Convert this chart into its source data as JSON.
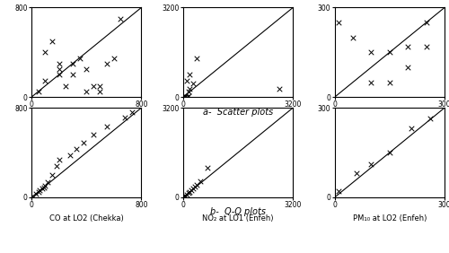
{
  "scatter_co": {
    "x": [
      50,
      100,
      150,
      200,
      200,
      250,
      300,
      350,
      400,
      450,
      500,
      550,
      600,
      650,
      100,
      200,
      300,
      400,
      500
    ],
    "y": [
      50,
      400,
      500,
      300,
      250,
      100,
      300,
      350,
      50,
      100,
      100,
      300,
      350,
      700,
      150,
      200,
      200,
      250,
      50
    ],
    "xlim": [
      0,
      800
    ],
    "ylim": [
      0,
      800
    ],
    "xlabel": "CO at LO2 (Chekka)"
  },
  "scatter_no2": {
    "x": [
      0,
      50,
      100,
      150,
      200,
      300,
      400,
      2800,
      50,
      100,
      150,
      200
    ],
    "y": [
      0,
      50,
      600,
      200,
      300,
      500,
      1400,
      300,
      0,
      0,
      50,
      800
    ],
    "xlim": [
      0,
      3200
    ],
    "ylim": [
      0,
      3200
    ],
    "xlabel": "NO₂ at LO1 (Enfeh)"
  },
  "scatter_pm10": {
    "x": [
      10,
      50,
      100,
      150,
      200,
      250,
      100,
      150,
      200,
      250
    ],
    "y": [
      250,
      200,
      150,
      150,
      170,
      170,
      50,
      50,
      100,
      250
    ],
    "xlim": [
      0,
      300
    ],
    "ylim": [
      0,
      300
    ],
    "xlabel": "PM₁₀ at LO2 (Enfeh)"
  },
  "qq_co": {
    "x": [
      10,
      30,
      50,
      60,
      80,
      90,
      100,
      120,
      150,
      180,
      200,
      280,
      330,
      380,
      450,
      550,
      680,
      730
    ],
    "y": [
      10,
      30,
      50,
      60,
      80,
      90,
      100,
      140,
      200,
      280,
      340,
      380,
      430,
      490,
      560,
      630,
      710,
      760
    ],
    "xlim": [
      0,
      800
    ],
    "ylim": [
      0,
      800
    ],
    "xlabel": "CO at LO2 (Chekka)"
  },
  "qq_no2": {
    "x": [
      0,
      30,
      60,
      100,
      150,
      200,
      250,
      300,
      350,
      400,
      500,
      700
    ],
    "y": [
      0,
      30,
      60,
      100,
      150,
      200,
      260,
      320,
      380,
      450,
      580,
      1050
    ],
    "xlim": [
      0,
      3200
    ],
    "ylim": [
      0,
      3200
    ],
    "xlabel": "NO₂ at LO1 (Enfeh)"
  },
  "qq_pm10": {
    "x": [
      10,
      60,
      100,
      150,
      210,
      260
    ],
    "y": [
      20,
      80,
      110,
      150,
      230,
      265
    ],
    "xlim": [
      0,
      300
    ],
    "ylim": [
      0,
      300
    ],
    "xlabel": "PM₁₀ at LO2 (Enfeh)"
  },
  "label_a": "a-  Scatter plots",
  "label_b": "b-  Q-Q plots",
  "marker": "x",
  "marker_size": 16,
  "line_color": "black",
  "marker_color": "black",
  "tick_fontsize": 5.5,
  "label_fontsize": 6,
  "annot_fontsize": 7,
  "linewidth": 0.8
}
